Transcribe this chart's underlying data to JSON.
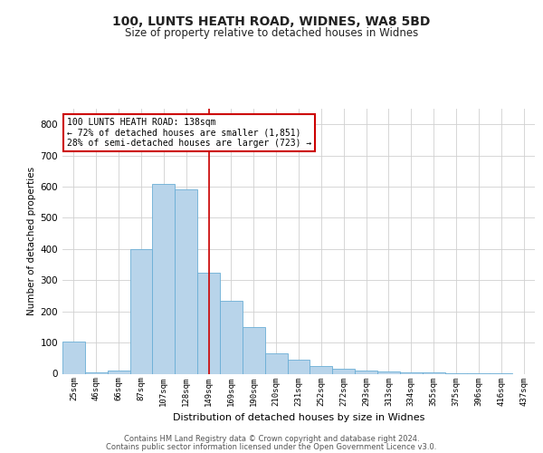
{
  "title": "100, LUNTS HEATH ROAD, WIDNES, WA8 5BD",
  "subtitle": "Size of property relative to detached houses in Widnes",
  "xlabel": "Distribution of detached houses by size in Widnes",
  "ylabel": "Number of detached properties",
  "bar_labels": [
    "25sqm",
    "46sqm",
    "66sqm",
    "87sqm",
    "107sqm",
    "128sqm",
    "149sqm",
    "169sqm",
    "190sqm",
    "210sqm",
    "231sqm",
    "252sqm",
    "272sqm",
    "293sqm",
    "313sqm",
    "334sqm",
    "355sqm",
    "375sqm",
    "396sqm",
    "416sqm",
    "437sqm"
  ],
  "bar_values": [
    102,
    5,
    10,
    400,
    610,
    590,
    325,
    235,
    150,
    65,
    45,
    25,
    15,
    10,
    8,
    5,
    3,
    2,
    1,
    1,
    0
  ],
  "bar_color": "#b8d4ea",
  "bar_edge_color": "#6aaed6",
  "annotation_text": "100 LUNTS HEATH ROAD: 138sqm\n← 72% of detached houses are smaller (1,851)\n28% of semi-detached houses are larger (723) →",
  "vline_x": 6.0,
  "vline_color": "#cc0000",
  "annotation_box_color": "#cc0000",
  "background_color": "#ffffff",
  "grid_color": "#d0d0d0",
  "ylim": [
    0,
    850
  ],
  "yticks": [
    0,
    100,
    200,
    300,
    400,
    500,
    600,
    700,
    800
  ],
  "footer_line1": "Contains HM Land Registry data © Crown copyright and database right 2024.",
  "footer_line2": "Contains public sector information licensed under the Open Government Licence v3.0."
}
